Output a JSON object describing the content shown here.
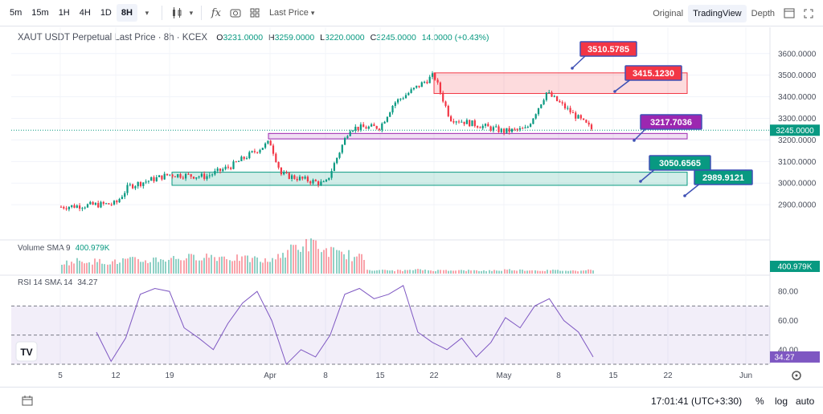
{
  "toolbar": {
    "timeframes": [
      "5m",
      "15m",
      "1H",
      "4H",
      "1D",
      "8H"
    ],
    "active_timeframe": "8H",
    "price_type": "Last Price",
    "views": [
      "Original",
      "TradingView",
      "Depth"
    ],
    "active_view": "TradingView"
  },
  "legend": {
    "symbol": "XAUT USDT Perpetual Last Price · 8h · KCEX",
    "open_label": "O",
    "open": "3231.0000",
    "high_label": "H",
    "high": "3259.0000",
    "low_label": "L",
    "low": "3220.0000",
    "close_label": "C",
    "close": "3245.0000",
    "change": "14.0000 (+0.43%)"
  },
  "volume_pane": {
    "label": "Volume SMA 9",
    "value": "400.979K",
    "tag": "400.979K"
  },
  "rsi_pane": {
    "label": "RSI 14 SMA 14",
    "value": "34.27",
    "tag": "34.27",
    "axis_ticks": [
      "80.00",
      "60.00",
      "40.00"
    ]
  },
  "annotations": {
    "r1": "3510.5785",
    "r2": "3415.1230",
    "pivot": "3217.7036",
    "s1": "3050.6565",
    "s2": "2989.9121"
  },
  "colors": {
    "up": "#089981",
    "down": "#f23645",
    "rsi": "#7e57c2",
    "resistance": "#f23645",
    "support": "#089981",
    "pivot": "#9c27b0"
  },
  "logo": "TV",
  "bottom": {
    "time": "17:01:41 (UTC+3:30)",
    "percent": "%",
    "log": "log",
    "auto": "auto"
  },
  "chart_data": {
    "type": "candlestick",
    "y_axis_ticks": [
      3600,
      3500,
      3400,
      3300,
      3200,
      3100,
      3000,
      2900
    ],
    "y_tick_labels": [
      "3600.0000",
      "3500.0000",
      "3400.0000",
      "3300.0000",
      "3200.0000",
      "3100.0000",
      "3000.0000",
      "2900.0000"
    ],
    "x_tick_labels": [
      "5",
      "12",
      "19",
      "Apr",
      "8",
      "15",
      "22",
      "May",
      "8",
      "15",
      "22",
      "Jun"
    ],
    "ylim": [
      2830,
      3640
    ],
    "last_price": 3245.0,
    "last_price_label": "3245.0000",
    "zones": [
      {
        "type": "resistance",
        "from": 3415.123,
        "to": 3510.5785
      },
      {
        "type": "pivot",
        "from": 3205,
        "to": 3230
      },
      {
        "type": "support",
        "from": 2989.9121,
        "to": 3050.6565
      }
    ],
    "close_path": [
      {
        "t": "5",
        "price": 2890
      },
      {
        "t": "12",
        "price": 2905
      },
      {
        "t": "14",
        "price": 2985
      },
      {
        "t": "19",
        "price": 3040
      },
      {
        "t": "24",
        "price": 3030
      },
      {
        "t": "28",
        "price": 3080
      },
      {
        "t": "Apr",
        "price": 3190
      },
      {
        "t": "Apr 5",
        "price": 3040
      },
      {
        "t": "8",
        "price": 2995
      },
      {
        "t": "11",
        "price": 3255
      },
      {
        "t": "15",
        "price": 3260
      },
      {
        "t": "17",
        "price": 3370
      },
      {
        "t": "22",
        "price": 3500
      },
      {
        "t": "26",
        "price": 3300
      },
      {
        "t": "May",
        "price": 3240
      },
      {
        "t": "May 5",
        "price": 3250
      },
      {
        "t": "May 7",
        "price": 3420
      },
      {
        "t": "May 10",
        "price": 3245
      }
    ],
    "rsi": [
      52,
      32,
      48,
      78,
      82,
      80,
      55,
      48,
      40,
      58,
      72,
      80,
      60,
      30,
      40,
      35,
      50,
      78,
      82,
      75,
      78,
      84,
      52,
      45,
      40,
      48,
      35,
      45,
      62,
      55,
      70,
      75,
      60,
      52,
      35
    ],
    "volume": [
      35,
      40,
      38,
      36,
      42,
      40,
      45,
      48,
      50,
      55,
      52,
      48,
      45,
      40,
      60,
      85,
      90,
      70,
      60,
      50,
      12,
      10,
      10,
      12,
      10,
      11,
      10,
      9,
      10,
      12,
      11,
      10,
      10,
      9,
      12
    ]
  }
}
